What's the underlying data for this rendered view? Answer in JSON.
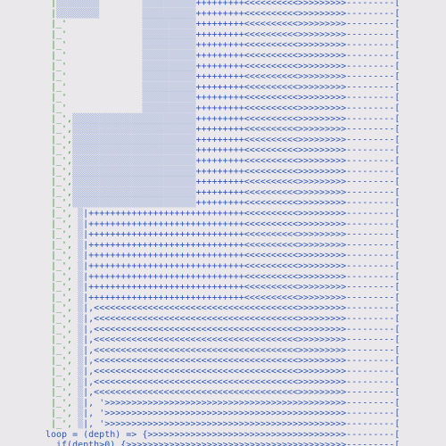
{
  "colors": {
    "background": "#ebe8ec",
    "prefix": "#3f9a3f",
    "block": "#a9b9da",
    "code": "#2c56b4"
  },
  "lines": [
    {
      "prefix": "|",
      "block": "▒▒▒▒▒▒▒▒        ▒▒▒▒▒▒▒▒▒▒",
      "code": "+++++++++<<<<<<<<<<>>>>>>>>>---------["
    },
    {
      "prefix": "|",
      "block": "▒▒▒▒▒▒▒▒        ▒▒▒▒▒▒▒▒▒▒",
      "code": "+++++++++<<<<<<<<<<>>>>>>>>>---------["
    },
    {
      "prefix": "|_'",
      "block": "              ▒▒▒▒▒▒▒▒▒▒",
      "code": "+++++++++<<<<<<<<<<>>>>>>>>>---------["
    },
    {
      "prefix": "|_'",
      "block": "              ▒▒▒▒▒▒▒▒▒▒",
      "code": "+++++++++<<<<<<<<<<>>>>>>>>>---------["
    },
    {
      "prefix": "|_'",
      "block": "              ▒▒▒▒▒▒▒▒▒▒",
      "code": "+++++++++<<<<<<<<<<>>>>>>>>>---------["
    },
    {
      "prefix": "|_'",
      "block": "              ▒▒▒▒▒▒▒▒▒▒",
      "code": "+++++++++<<<<<<<<<<>>>>>>>>>---------["
    },
    {
      "prefix": "|_'",
      "block": "              ▒▒▒▒▒▒▒▒▒▒",
      "code": "+++++++++<<<<<<<<<<>>>>>>>>>---------["
    },
    {
      "prefix": "|_'",
      "block": "              ▒▒▒▒▒▒▒▒▒▒",
      "code": "+++++++++<<<<<<<<<<>>>>>>>>>---------["
    },
    {
      "prefix": "|_'",
      "block": "              ▒▒▒▒▒▒▒▒▒▒",
      "code": "+++++++++<<<<<<<<<<>>>>>>>>>---------["
    },
    {
      "prefix": "|_'",
      "block": "              ▒▒▒▒▒▒▒▒▒▒",
      "code": "+++++++++<<<<<<<<<<>>>>>>>>>---------["
    },
    {
      "prefix": "|_'",
      "block": "              ▒▒▒▒▒▒▒▒▒▒",
      "code": "+++++++++<<<<<<<<<<>>>>>>>>>---------["
    },
    {
      "prefix": "|_',",
      "block": "▒▒▒▒▒▒▒▒▒▒▒▒▒▒▒▒▒▒▒▒▒▒▒",
      "code": "+++++++++<<<<<<<<<<>>>>>>>>>---------["
    },
    {
      "prefix": "|_',",
      "block": "▒▒▒▒▒▒▒▒▒▒▒▒▒▒▒▒▒▒▒▒▒▒▒",
      "code": "+++++++++<<<<<<<<<<>>>>>>>>>---------["
    },
    {
      "prefix": "|_',",
      "block": "▒▒▒▒▒▒▒▒▒▒▒▒▒▒▒▒▒▒▒▒▒▒▒",
      "code": "+++++++++<<<<<<<<<<>>>>>>>>>---------["
    },
    {
      "prefix": "|_',",
      "block": "▒▒▒▒▒▒▒▒▒▒▒▒▒▒▒▒▒▒▒▒▒▒▒",
      "code": "+++++++++<<<<<<<<<<>>>>>>>>>---------["
    },
    {
      "prefix": "|_',",
      "block": "▒▒▒▒▒▒▒▒▒▒▒▒▒▒▒▒▒▒▒▒▒▒▒",
      "code": "+++++++++<<<<<<<<<<>>>>>>>>>---------["
    },
    {
      "prefix": "|_',",
      "block": "▒▒▒▒▒▒▒▒▒▒▒▒▒▒▒▒▒▒▒▒▒▒▒",
      "code": "+++++++++<<<<<<<<<<>>>>>>>>>---------["
    },
    {
      "prefix": "|_',",
      "block": "▒▒▒▒▒▒▒▒▒▒▒▒▒▒▒▒▒▒▒▒▒▒▒",
      "code": "+++++++++<<<<<<<<<<>>>>>>>>>---------["
    },
    {
      "prefix": "|_',",
      "block": "▒▒▒▒▒▒▒▒▒▒▒▒▒▒▒▒▒▒▒▒▒▒▒",
      "code": "+++++++++<<<<<<<<<<>>>>>>>>>---------["
    },
    {
      "prefix": "|_',",
      "block": "▒▒▒▒▒▒▒▒▒▒▒▒▒▒▒▒▒▒▒▒▒▒▒",
      "code": "+++++++++<<<<<<<<<<>>>>>>>>>---------["
    },
    {
      "prefix": "|_', ",
      "block": "▒",
      "code": "|+++++++++++++++++++++++++++++<<<<<<<<<<>>>>>>>>>---------["
    },
    {
      "prefix": "|_', ",
      "block": "▒",
      "code": "|+++++++++++++++++++++++++++++<<<<<<<<<<>>>>>>>>>---------["
    },
    {
      "prefix": "|_', ",
      "block": "▒",
      "code": "|+++++++++++++++++++++++++++++<<<<<<<<<<>>>>>>>>>---------["
    },
    {
      "prefix": "|_', ",
      "block": "▒",
      "code": "|+++++++++++++++++++++++++++++<<<<<<<<<<>>>>>>>>>---------["
    },
    {
      "prefix": "|_', ",
      "block": "▒",
      "code": "|+++++++++++++++++++++++++++++<<<<<<<<<<>>>>>>>>>---------["
    },
    {
      "prefix": "|_', ",
      "block": "▒",
      "code": "|+++++++++++++++++++++++++++++<<<<<<<<<<>>>>>>>>>---------["
    },
    {
      "prefix": "|_', ",
      "block": "▒",
      "code": "|+++++++++++++++++++++++++++++<<<<<<<<<<>>>>>>>>>---------["
    },
    {
      "prefix": "|_', ",
      "block": "▒",
      "code": "|+++++++++++++++++++++++++++++<<<<<<<<<<>>>>>>>>>---------["
    },
    {
      "prefix": "|_', ",
      "block": "▒",
      "code": "|+++++++++++++++++++++++++++++<<<<<<<<<<>>>>>>>>>---------["
    },
    {
      "prefix": "|_', ",
      "block": "▒",
      "code": "|,<<<<<<<<<<<<<<<<<<<<<<<<<<<<<<<<<<<<<<>>>>>>>>>---------["
    },
    {
      "prefix": "|_', ",
      "block": "▒",
      "code": "|,<<<<<<<<<<<<<<<<<<<<<<<<<<<<<<<<<<<<<<>>>>>>>>>---------["
    },
    {
      "prefix": "|_', ",
      "block": "▒",
      "code": "|,<<<<<<<<<<<<<<<<<<<<<<<<<<<<<<<<<<<<<<>>>>>>>>>---------["
    },
    {
      "prefix": "|_', ",
      "block": "▒",
      "code": "|,<<<<<<<<<<<<<<<<<<<<<<<<<<<<<<<<<<<<<<>>>>>>>>>---------["
    },
    {
      "prefix": "|_', ",
      "block": "▒",
      "code": "|,<<<<<<<<<<<<<<<<<<<<<<<<<<<<<<<<<<<<<<>>>>>>>>>---------["
    },
    {
      "prefix": "|_', ",
      "block": "▒",
      "code": "|,<<<<<<<<<<<<<<<<<<<<<<<<<<<<<<<<<<<<<<>>>>>>>>>---------["
    },
    {
      "prefix": "|_', ",
      "block": "▒",
      "code": "|,<<<<<<<<<<<<<<<<<<<<<<<<<<<<<<<<<<<<<<>>>>>>>>>---------["
    },
    {
      "prefix": "|_', ",
      "block": "▒",
      "code": "|,<<<<<<<<<<<<<<<<<<<<<<<<<<<<<<<<<<<<<<>>>>>>>>>---------["
    },
    {
      "prefix": "|_', ",
      "block": "▒",
      "code": "|,<<<<<<<<<<<<<<<<<<<<<<<<<<<<<<<<<<<<<<>>>>>>>>>---------["
    },
    {
      "prefix": "|_', ",
      "block": "▒",
      "code": "|, '>>>>>>>>>>>>>>>>>>>>>>>>>>>>>>>>>>>>>>>>>>>>>---------["
    },
    {
      "prefix": "|_', ",
      "block": "▒",
      "code": "|, '>>>>>>>>>>>>>>>>>>>>>>>>>>>>>>>>>>>>>>>>>>>>>---------["
    },
    {
      "prefix": "|_', ",
      "block": "▒",
      "code": "|, '>>>>>>>>>>>>>>>>>>>>>>>>>>>>>>>>>>>>>>>>>>>>>---------["
    },
    {
      "code": "loop = (depth) => {>>>>>>>>>>>>>>>>>>>>>>>>>>>>>>>>>>>>>---------["
    },
    {
      "code": "  if(depth>0) {>>>>>>>>>>>>>>>>>>>>>>>>>>>>>>>>>>>>>>>>>---------["
    }
  ]
}
